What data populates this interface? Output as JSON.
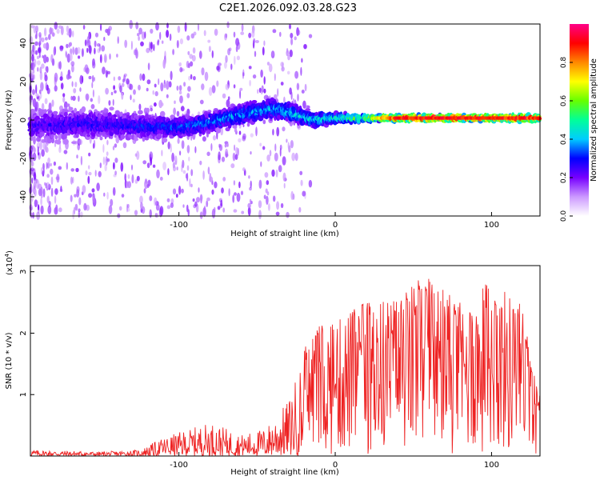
{
  "title": "C2E1.2026.092.03.28.G23",
  "chart_data": [
    {
      "type": "heatmap",
      "name": "spectrogram",
      "xlabel": "Height of straight line (km)",
      "ylabel": "Frequency (Hz)",
      "xlim": [
        -195,
        131
      ],
      "ylim": [
        -50,
        50
      ],
      "xticks": [
        -100,
        0,
        100
      ],
      "yticks": [
        -40,
        -20,
        0,
        20,
        40
      ],
      "colorbar": {
        "label": "Normalized spectral amplitude",
        "range": [
          0,
          1
        ],
        "ticks": [
          0.0,
          0.2,
          0.4,
          0.6,
          0.8
        ],
        "tick_labels": [
          "0.0",
          "0.2",
          "0.4",
          "0.6",
          "0.8"
        ],
        "colors": [
          "#ffffff",
          "#cc99ff",
          "#7700ff",
          "#0000ff",
          "#00ccff",
          "#00ff99",
          "#66ff00",
          "#ffff00",
          "#ff8800",
          "#ff0000",
          "#ff0088"
        ]
      },
      "ridge": [
        {
          "x": -195,
          "freq": -3,
          "spread": 10,
          "amp": 0.25
        },
        {
          "x": -160,
          "freq": -2,
          "spread": 9,
          "amp": 0.3
        },
        {
          "x": -130,
          "freq": -3,
          "spread": 8,
          "amp": 0.3
        },
        {
          "x": -100,
          "freq": -4,
          "spread": 6,
          "amp": 0.35
        },
        {
          "x": -80,
          "freq": -1,
          "spread": 6,
          "amp": 0.38
        },
        {
          "x": -60,
          "freq": 3,
          "spread": 6,
          "amp": 0.4
        },
        {
          "x": -40,
          "freq": 6,
          "spread": 6,
          "amp": 0.4
        },
        {
          "x": -25,
          "freq": 3,
          "spread": 5,
          "amp": 0.45
        },
        {
          "x": -15,
          "freq": 0,
          "spread": 4,
          "amp": 0.45
        },
        {
          "x": 0,
          "freq": 1,
          "spread": 3,
          "amp": 0.5
        },
        {
          "x": 20,
          "freq": 1,
          "spread": 2,
          "amp": 0.65
        },
        {
          "x": 40,
          "freq": 1,
          "spread": 1.8,
          "amp": 0.95
        },
        {
          "x": 131,
          "freq": 1,
          "spread": 1.8,
          "amp": 0.95
        }
      ]
    },
    {
      "type": "line",
      "name": "snr",
      "xlabel": "Height of straight line (km)",
      "ylabel": "SNR (10 * v/v)",
      "y_multiplier": "(x10",
      "y_multiplier_exp": "4",
      "y_multiplier_close": ")",
      "xlim": [
        -195,
        131
      ],
      "ylim": [
        0,
        3.1
      ],
      "xticks": [
        -100,
        0,
        100
      ],
      "yticks": [
        1,
        2,
        3
      ],
      "color": "#ee2222",
      "envelope": [
        {
          "x": -195,
          "y": 0.1
        },
        {
          "x": -150,
          "y": 0.07
        },
        {
          "x": -125,
          "y": 0.1
        },
        {
          "x": -110,
          "y": 0.3
        },
        {
          "x": -80,
          "y": 0.55
        },
        {
          "x": -60,
          "y": 0.35
        },
        {
          "x": -45,
          "y": 0.45
        },
        {
          "x": -30,
          "y": 0.9
        },
        {
          "x": -15,
          "y": 2.1
        },
        {
          "x": 0,
          "y": 2.2
        },
        {
          "x": 15,
          "y": 2.5
        },
        {
          "x": 30,
          "y": 2.6
        },
        {
          "x": 45,
          "y": 2.7
        },
        {
          "x": 56,
          "y": 3.0
        },
        {
          "x": 80,
          "y": 2.5
        },
        {
          "x": 100,
          "y": 2.9
        },
        {
          "x": 120,
          "y": 2.5
        },
        {
          "x": 126,
          "y": 1.5
        },
        {
          "x": 131,
          "y": 1.1
        }
      ]
    }
  ]
}
